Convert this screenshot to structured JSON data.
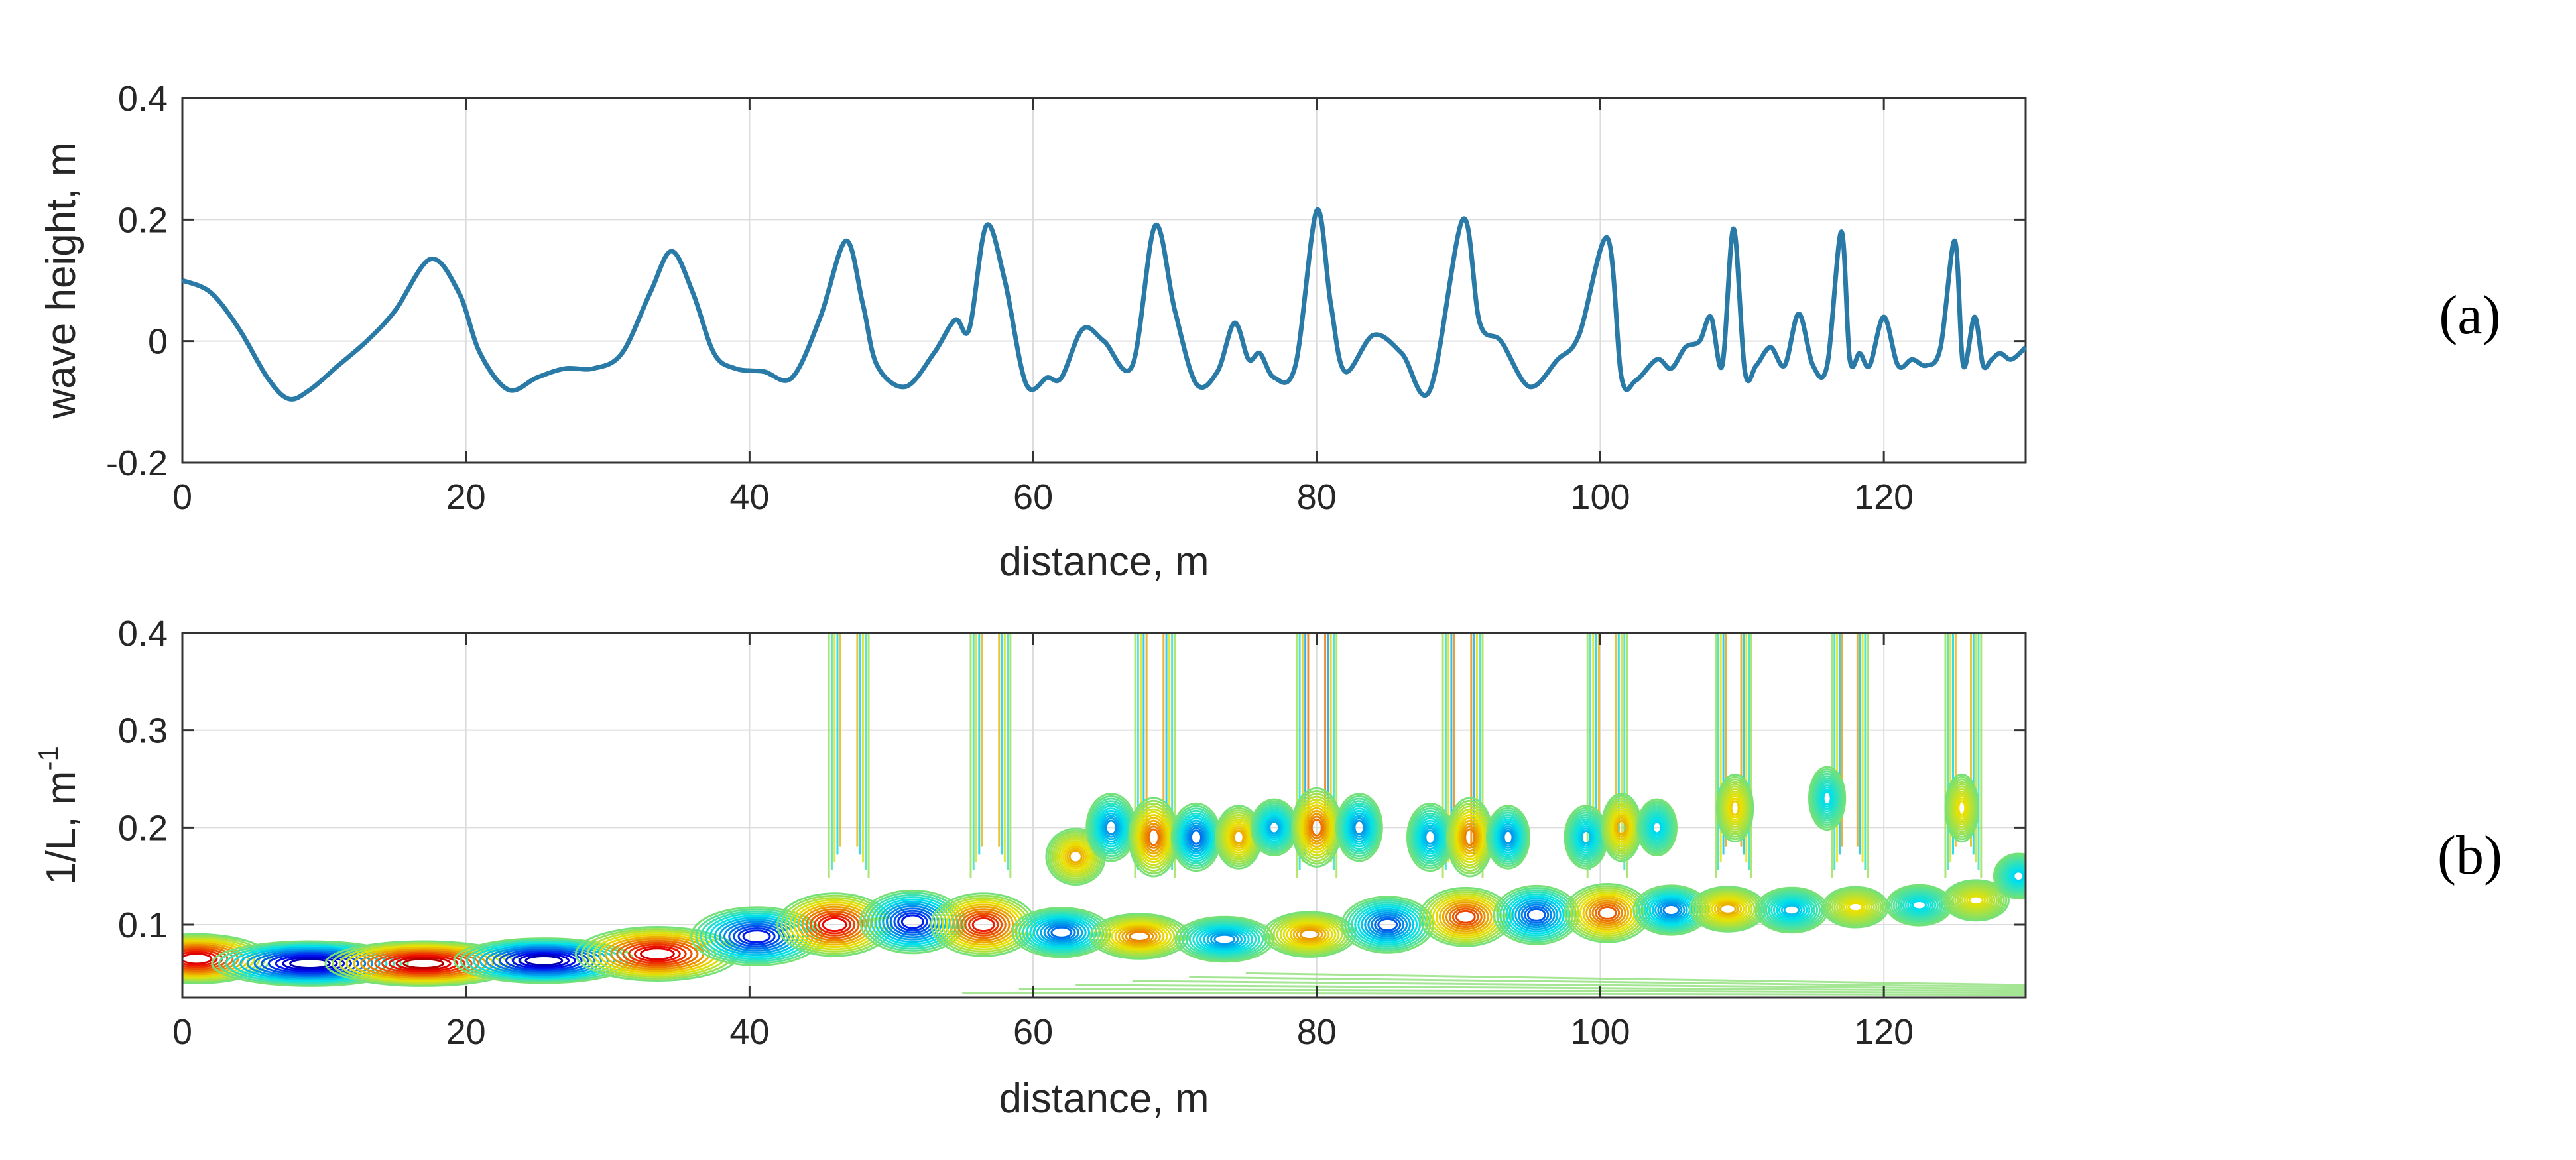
{
  "figure": {
    "panels": [
      "(a)",
      "(b)"
    ]
  },
  "colors": {
    "line": "#2a7aa8",
    "axis": "#333333",
    "grid": "#dcdcdc"
  },
  "chart_data": [
    {
      "type": "line",
      "panel": "(a)",
      "title": "",
      "xlabel": "distance, m",
      "ylabel": "wave height, m",
      "xlim": [
        0,
        130
      ],
      "ylim": [
        -0.2,
        0.4
      ],
      "xticks": [
        0,
        20,
        40,
        60,
        80,
        100,
        120
      ],
      "yticks": [
        -0.2,
        0,
        0.2,
        0.4
      ],
      "ytick_labels": [
        "-0.2",
        "0",
        "0.2",
        "0.4"
      ],
      "series": [
        {
          "name": "wave height",
          "x": [
            0,
            2,
            4,
            6,
            7.5,
            9,
            11,
            13,
            15,
            17.5,
            19.5,
            21,
            23,
            25,
            27,
            29,
            31,
            33,
            34.5,
            36,
            37.5,
            39,
            41,
            43,
            45,
            46.8,
            48,
            49,
            51,
            53,
            54.5,
            55.5,
            56.7,
            58,
            59.5,
            61,
            62,
            63.5,
            65,
            67,
            68.6,
            70,
            71.5,
            73,
            74.2,
            75.2,
            76,
            77,
            78.5,
            80,
            81,
            82,
            84,
            86,
            88,
            90.3,
            91.5,
            93,
            95,
            97,
            98.5,
            100.5,
            101.5,
            102.5,
            104,
            105,
            106,
            107,
            107.8,
            108.6,
            109.4,
            110.2,
            111,
            112,
            113,
            114,
            115,
            116,
            117,
            117.6,
            118.3,
            119,
            120,
            121,
            122,
            123,
            124,
            125,
            125.6,
            126.4,
            127,
            127.6,
            128.2,
            129,
            130
          ],
          "y": [
            0.1,
            0.08,
            0.02,
            -0.06,
            -0.095,
            -0.08,
            -0.04,
            0.0,
            0.05,
            0.135,
            0.08,
            -0.02,
            -0.08,
            -0.06,
            -0.045,
            -0.045,
            -0.02,
            0.08,
            0.148,
            0.08,
            -0.02,
            -0.045,
            -0.05,
            -0.06,
            0.04,
            0.165,
            0.06,
            -0.04,
            -0.075,
            -0.02,
            0.035,
            0.02,
            0.19,
            0.1,
            -0.07,
            -0.06,
            -0.06,
            0.02,
            0.0,
            -0.04,
            0.19,
            0.05,
            -0.07,
            -0.05,
            0.03,
            -0.03,
            -0.02,
            -0.06,
            -0.04,
            0.215,
            0.06,
            -0.05,
            0.01,
            -0.02,
            -0.08,
            0.2,
            0.03,
            0.0,
            -0.075,
            -0.03,
            0.01,
            0.17,
            -0.06,
            -0.065,
            -0.03,
            -0.045,
            -0.01,
            0.0,
            0.04,
            -0.04,
            0.185,
            -0.05,
            -0.04,
            -0.01,
            -0.04,
            0.045,
            -0.04,
            -0.04,
            0.18,
            -0.03,
            -0.02,
            -0.04,
            0.04,
            -0.04,
            -0.03,
            -0.04,
            -0.01,
            0.165,
            -0.04,
            0.04,
            -0.04,
            -0.03,
            -0.02,
            -0.03,
            -0.01
          ]
        }
      ]
    },
    {
      "type": "heatmap",
      "panel": "(b)",
      "title": "",
      "xlabel": "distance, m",
      "ylabel": "1/L, m",
      "ylabel_superscript": "-1",
      "xlim": [
        0,
        130
      ],
      "ylim": [
        0.025,
        0.4
      ],
      "xticks": [
        0,
        20,
        40,
        60,
        80,
        100,
        120
      ],
      "yticks": [
        0.1,
        0.2,
        0.3,
        0.4
      ],
      "ytick_labels": [
        "0.1",
        "0.2",
        "0.3",
        "0.4"
      ],
      "grid": true,
      "blobs": [
        {
          "x": 1,
          "y": 0.065,
          "rx": 4.5,
          "ry": 0.022,
          "intensity": 0.85
        },
        {
          "x": 9,
          "y": 0.06,
          "rx": 6,
          "ry": 0.02,
          "intensity": -0.95
        },
        {
          "x": 17,
          "y": 0.06,
          "rx": 6,
          "ry": 0.02,
          "intensity": 0.95
        },
        {
          "x": 25.5,
          "y": 0.063,
          "rx": 5.5,
          "ry": 0.02,
          "intensity": -0.95
        },
        {
          "x": 33.5,
          "y": 0.07,
          "rx": 5,
          "ry": 0.024,
          "intensity": 0.85
        },
        {
          "x": 40.5,
          "y": 0.088,
          "rx": 4,
          "ry": 0.026,
          "intensity": -0.75
        },
        {
          "x": 46,
          "y": 0.1,
          "rx": 3.5,
          "ry": 0.028,
          "intensity": 0.8
        },
        {
          "x": 51.5,
          "y": 0.103,
          "rx": 3.2,
          "ry": 0.028,
          "intensity": -0.75
        },
        {
          "x": 56.5,
          "y": 0.1,
          "rx": 3.2,
          "ry": 0.028,
          "intensity": 0.75
        },
        {
          "x": 62,
          "y": 0.092,
          "rx": 3,
          "ry": 0.022,
          "intensity": -0.55
        },
        {
          "x": 67.5,
          "y": 0.088,
          "rx": 3,
          "ry": 0.02,
          "intensity": 0.5
        },
        {
          "x": 73.5,
          "y": 0.085,
          "rx": 3,
          "ry": 0.02,
          "intensity": -0.45
        },
        {
          "x": 79.5,
          "y": 0.09,
          "rx": 2.8,
          "ry": 0.02,
          "intensity": 0.45
        },
        {
          "x": 85,
          "y": 0.1,
          "rx": 2.8,
          "ry": 0.025,
          "intensity": -0.6
        },
        {
          "x": 90.5,
          "y": 0.108,
          "rx": 2.8,
          "ry": 0.026,
          "intensity": 0.65
        },
        {
          "x": 95.5,
          "y": 0.11,
          "rx": 2.6,
          "ry": 0.026,
          "intensity": -0.6
        },
        {
          "x": 100.5,
          "y": 0.112,
          "rx": 2.6,
          "ry": 0.026,
          "intensity": 0.6
        },
        {
          "x": 105,
          "y": 0.115,
          "rx": 2.3,
          "ry": 0.022,
          "intensity": -0.5
        },
        {
          "x": 109,
          "y": 0.116,
          "rx": 2.3,
          "ry": 0.02,
          "intensity": 0.4
        },
        {
          "x": 113.5,
          "y": 0.115,
          "rx": 2.2,
          "ry": 0.02,
          "intensity": -0.35
        },
        {
          "x": 118,
          "y": 0.118,
          "rx": 2,
          "ry": 0.018,
          "intensity": 0.28
        },
        {
          "x": 122.5,
          "y": 0.12,
          "rx": 2,
          "ry": 0.018,
          "intensity": -0.28
        },
        {
          "x": 126.5,
          "y": 0.125,
          "rx": 2,
          "ry": 0.018,
          "intensity": 0.25
        },
        {
          "x": 129.5,
          "y": 0.15,
          "rx": 1.5,
          "ry": 0.02,
          "intensity": -0.3
        },
        {
          "x": 63,
          "y": 0.17,
          "rx": 1.8,
          "ry": 0.025,
          "intensity": 0.4
        },
        {
          "x": 65.5,
          "y": 0.2,
          "rx": 1.5,
          "ry": 0.03,
          "intensity": -0.45
        },
        {
          "x": 68.5,
          "y": 0.19,
          "rx": 1.5,
          "ry": 0.035,
          "intensity": 0.55
        },
        {
          "x": 71.5,
          "y": 0.19,
          "rx": 1.5,
          "ry": 0.03,
          "intensity": -0.55
        },
        {
          "x": 74.5,
          "y": 0.19,
          "rx": 1.4,
          "ry": 0.028,
          "intensity": 0.4
        },
        {
          "x": 77,
          "y": 0.2,
          "rx": 1.4,
          "ry": 0.025,
          "intensity": -0.4
        },
        {
          "x": 80,
          "y": 0.2,
          "rx": 1.5,
          "ry": 0.035,
          "intensity": 0.55
        },
        {
          "x": 83,
          "y": 0.2,
          "rx": 1.4,
          "ry": 0.03,
          "intensity": -0.45
        },
        {
          "x": 88,
          "y": 0.19,
          "rx": 1.4,
          "ry": 0.03,
          "intensity": -0.4
        },
        {
          "x": 90.8,
          "y": 0.19,
          "rx": 1.4,
          "ry": 0.035,
          "intensity": 0.5
        },
        {
          "x": 93.5,
          "y": 0.19,
          "rx": 1.3,
          "ry": 0.028,
          "intensity": -0.45
        },
        {
          "x": 99,
          "y": 0.19,
          "rx": 1.3,
          "ry": 0.028,
          "intensity": -0.35
        },
        {
          "x": 101.5,
          "y": 0.2,
          "rx": 1.2,
          "ry": 0.03,
          "intensity": 0.4
        },
        {
          "x": 104,
          "y": 0.2,
          "rx": 1.2,
          "ry": 0.025,
          "intensity": -0.3
        },
        {
          "x": 109.5,
          "y": 0.22,
          "rx": 1.1,
          "ry": 0.03,
          "intensity": 0.32
        },
        {
          "x": 116,
          "y": 0.23,
          "rx": 1.1,
          "ry": 0.028,
          "intensity": -0.28
        },
        {
          "x": 125.5,
          "y": 0.22,
          "rx": 1.0,
          "ry": 0.03,
          "intensity": 0.28
        }
      ],
      "ridges": [
        {
          "x": 47,
          "half_width": 1.0,
          "intensity": 0.35
        },
        {
          "x": 57,
          "half_width": 1.0,
          "intensity": 0.35
        },
        {
          "x": 68.6,
          "half_width": 1.0,
          "intensity": 0.4
        },
        {
          "x": 80,
          "half_width": 1.0,
          "intensity": 0.5
        },
        {
          "x": 90.3,
          "half_width": 1.0,
          "intensity": 0.45
        },
        {
          "x": 100.5,
          "half_width": 1.0,
          "intensity": 0.35
        },
        {
          "x": 109.4,
          "half_width": 0.9,
          "intensity": 0.4
        },
        {
          "x": 117.6,
          "half_width": 0.9,
          "intensity": 0.4
        },
        {
          "x": 125.6,
          "half_width": 0.9,
          "intensity": 0.35
        }
      ]
    }
  ]
}
